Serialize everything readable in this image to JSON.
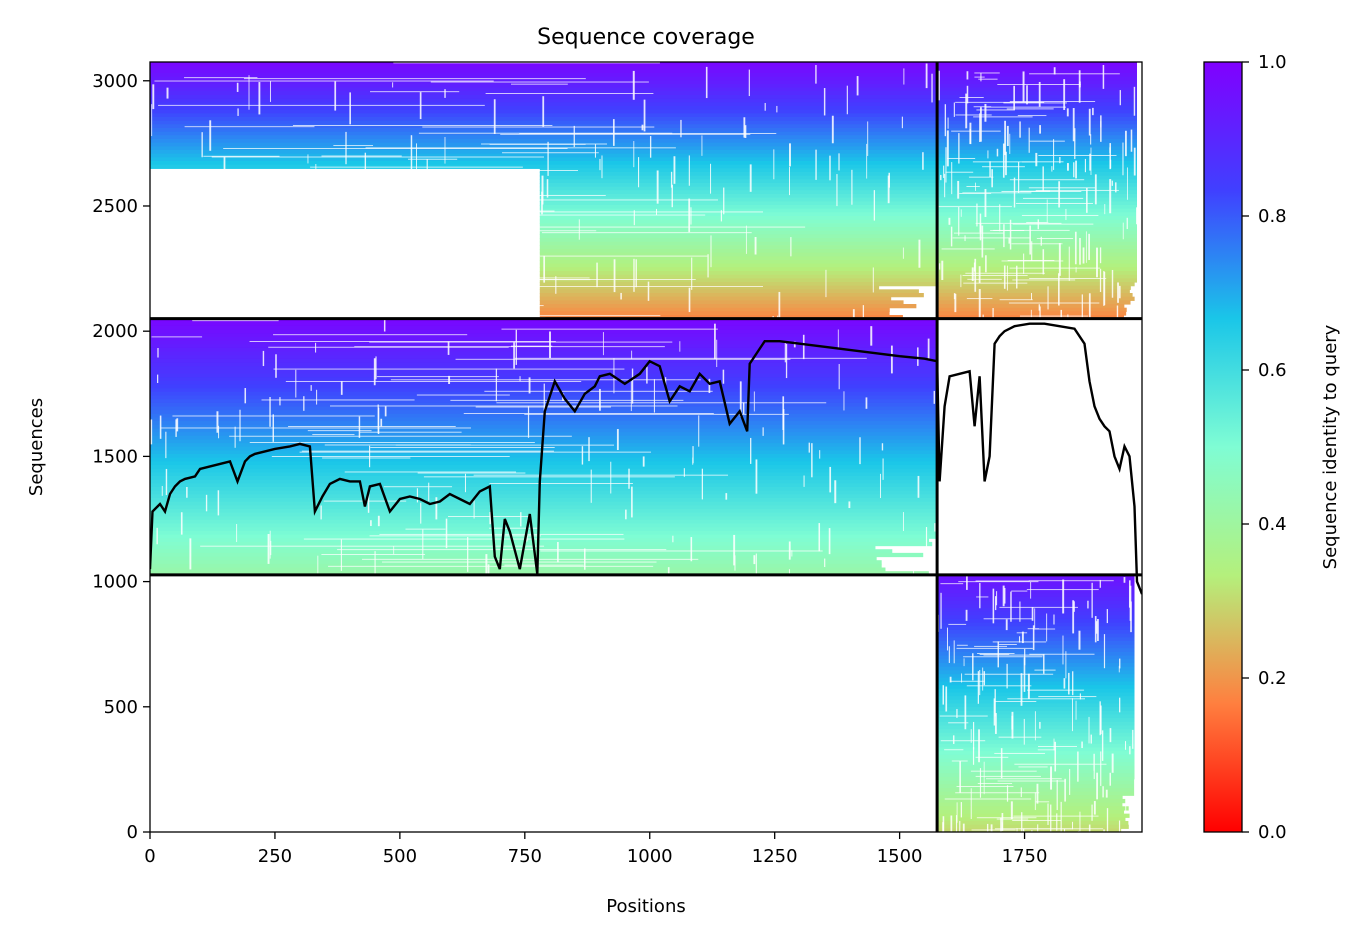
{
  "chart_data": {
    "type": "heatmap",
    "title": "Sequence coverage",
    "xlabel": "Positions",
    "ylabel": "Sequences",
    "xlim": [
      0,
      1985
    ],
    "ylim": [
      0,
      3075
    ],
    "xticks": [
      0,
      250,
      500,
      750,
      1000,
      1250,
      1500,
      1750
    ],
    "yticks": [
      0,
      500,
      1000,
      1500,
      2000,
      2500,
      3000
    ],
    "colorbar": {
      "label": "Sequence identity to query",
      "range": [
        0,
        1
      ],
      "ticks": [
        "0.0",
        "0.2",
        "0.4",
        "0.6",
        "0.8",
        "1.0"
      ],
      "colormap": "rainbow_r",
      "stops": [
        "#ff0000",
        "#ff7f3f",
        "#b4f07c",
        "#7ffdd4",
        "#1ac6e8",
        "#4040ff",
        "#8000ff"
      ]
    },
    "chain_boundaries": {
      "x": [
        0,
        1575,
        1985
      ],
      "y": [
        0,
        1027,
        2050,
        3075
      ]
    },
    "blocks": [
      {
        "x": [
          0,
          1575
        ],
        "y": [
          2050,
          3075
        ],
        "coverage_from_x": 780,
        "identity_top": 0.98,
        "identity_bottom": 0.18
      },
      {
        "x": [
          1575,
          1985
        ],
        "y": [
          2050,
          3075
        ],
        "coverage_to_x": 1975,
        "identity_top": 0.98,
        "identity_bottom": 0.18
      },
      {
        "x": [
          0,
          1575
        ],
        "y": [
          1027,
          2050
        ],
        "identity_top": 0.98,
        "identity_bottom": 0.42
      },
      {
        "x": [
          1575,
          1985
        ],
        "y": [
          0,
          1027
        ],
        "coverage_to_x": 1970,
        "identity_top": 0.95,
        "identity_bottom": 0.3
      }
    ],
    "coverage_line": {
      "color": "#000000",
      "x": [
        0,
        5,
        15,
        20,
        30,
        40,
        50,
        60,
        70,
        90,
        100,
        120,
        140,
        160,
        175,
        190,
        200,
        210,
        230,
        250,
        280,
        300,
        320,
        330,
        345,
        360,
        380,
        400,
        420,
        430,
        440,
        460,
        480,
        500,
        520,
        540,
        560,
        580,
        600,
        620,
        640,
        660,
        680,
        690,
        700,
        710,
        720,
        740,
        760,
        775,
        780,
        790,
        810,
        830,
        850,
        870,
        890,
        900,
        920,
        950,
        980,
        1000,
        1020,
        1040,
        1060,
        1080,
        1100,
        1120,
        1140,
        1160,
        1180,
        1195,
        1200,
        1230,
        1260,
        1300,
        1340,
        1380,
        1420,
        1460,
        1500,
        1550,
        1575,
        1580,
        1590,
        1600,
        1620,
        1640,
        1650,
        1660,
        1670,
        1680,
        1690,
        1700,
        1710,
        1730,
        1760,
        1790,
        1820,
        1850,
        1870,
        1880,
        1890,
        1900,
        1910,
        1920,
        1930,
        1940,
        1950,
        1960,
        1970,
        1975,
        1985
      ],
      "y": [
        1050,
        1280,
        1300,
        1310,
        1280,
        1350,
        1380,
        1400,
        1410,
        1420,
        1450,
        1460,
        1470,
        1480,
        1400,
        1480,
        1500,
        1510,
        1520,
        1530,
        1540,
        1550,
        1540,
        1280,
        1340,
        1390,
        1410,
        1400,
        1400,
        1300,
        1380,
        1390,
        1280,
        1330,
        1340,
        1330,
        1310,
        1320,
        1350,
        1330,
        1310,
        1360,
        1380,
        1100,
        1050,
        1250,
        1200,
        1050,
        1270,
        1030,
        1400,
        1680,
        1800,
        1730,
        1680,
        1750,
        1780,
        1820,
        1830,
        1790,
        1830,
        1880,
        1860,
        1720,
        1780,
        1760,
        1830,
        1790,
        1800,
        1630,
        1680,
        1600,
        1870,
        1960,
        1960,
        1950,
        1940,
        1930,
        1920,
        1910,
        1900,
        1890,
        1880,
        1400,
        1700,
        1820,
        1830,
        1840,
        1620,
        1820,
        1400,
        1500,
        1950,
        1980,
        2000,
        2020,
        2030,
        2030,
        2020,
        2010,
        1950,
        1800,
        1700,
        1650,
        1620,
        1600,
        1500,
        1450,
        1540,
        1500,
        1300,
        1000,
        950
      ]
    }
  }
}
